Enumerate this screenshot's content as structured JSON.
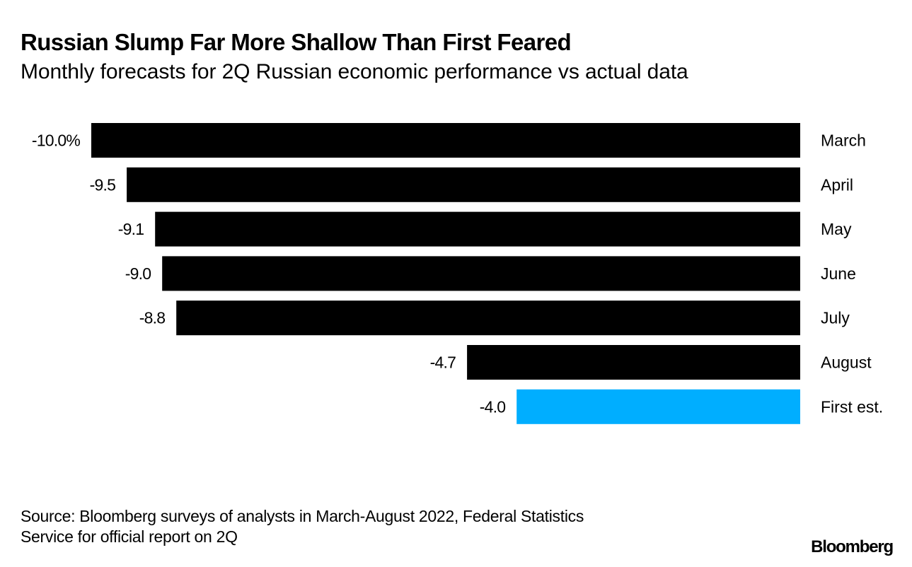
{
  "header": {
    "title": "Russian Slump Far More Shallow Than First Feared",
    "subtitle": "Monthly forecasts for 2Q Russian economic performance vs actual data"
  },
  "footer": {
    "source_line1": "Source: Bloomberg surveys of analysts in March-August 2022, Federal Statistics",
    "source_line2": "Service for official report on 2Q",
    "logo": "Bloomberg"
  },
  "chart_data": {
    "type": "bar",
    "orientation": "horizontal",
    "title": "Russian Slump Far More Shallow Than First Feared",
    "subtitle": "Monthly forecasts for 2Q Russian economic performance vs actual data",
    "xlabel": "",
    "ylabel": "",
    "unit": "%",
    "xlim": [
      -10,
      0
    ],
    "grid": false,
    "categories": [
      "March",
      "April",
      "May",
      "June",
      "July",
      "August",
      "First est."
    ],
    "values": [
      -10.0,
      -9.5,
      -9.1,
      -9.0,
      -8.8,
      -4.7,
      -4.0
    ],
    "value_labels": [
      "-10.0%",
      "-9.5",
      "-9.1",
      "-9.0",
      "-8.8",
      "-4.7",
      "-4.0"
    ],
    "colors": [
      "#000000",
      "#000000",
      "#000000",
      "#000000",
      "#000000",
      "#000000",
      "#00AEFF"
    ],
    "category_label_position": "right"
  }
}
